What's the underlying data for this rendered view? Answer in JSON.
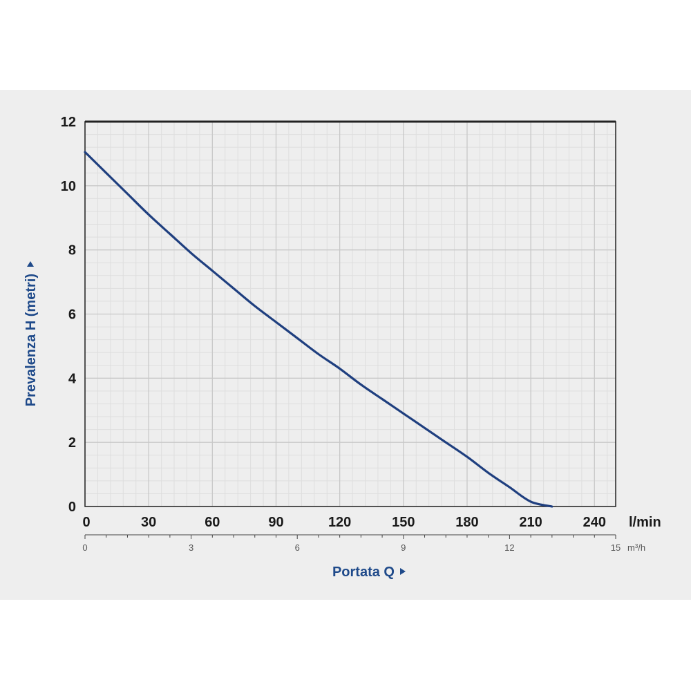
{
  "chart_data": {
    "type": "line",
    "title": "",
    "xlabel": "Portata Q",
    "ylabel": "Prevalenza H (metri)",
    "x_unit": "l/min",
    "x2_unit": "m",
    "x2_unit_superscript": "3",
    "x2_unit_suffix": "/h",
    "xlim": [
      0,
      250
    ],
    "ylim": [
      0,
      12
    ],
    "x_ticks": [
      "0",
      "30",
      "60",
      "90",
      "120",
      "150",
      "180",
      "210",
      "240"
    ],
    "x2_ticks": [
      "0",
      "3",
      "6",
      "9",
      "12",
      "15"
    ],
    "x2_lim": [
      0,
      15
    ],
    "y_ticks": [
      "0",
      "2",
      "4",
      "6",
      "8",
      "10",
      "12"
    ],
    "grid": true,
    "legend": "none",
    "colors": {
      "curve": "#1f3f7f",
      "label": "#1f4a8a",
      "grid_major": "#c8c8c8",
      "grid_minor": "#dedede",
      "frame": "#222222"
    },
    "series": [
      {
        "x": [
          0,
          10,
          20,
          30,
          40,
          50,
          60,
          70,
          80,
          90,
          100,
          110,
          120,
          130,
          140,
          150,
          160,
          170,
          180,
          190,
          200,
          210,
          220
        ],
        "values": [
          11.05,
          10.4,
          9.75,
          9.1,
          8.5,
          7.9,
          7.35,
          6.8,
          6.25,
          5.75,
          5.25,
          4.75,
          4.3,
          3.8,
          3.35,
          2.9,
          2.45,
          2.0,
          1.55,
          1.05,
          0.6,
          0.15,
          0.0
        ]
      }
    ]
  }
}
